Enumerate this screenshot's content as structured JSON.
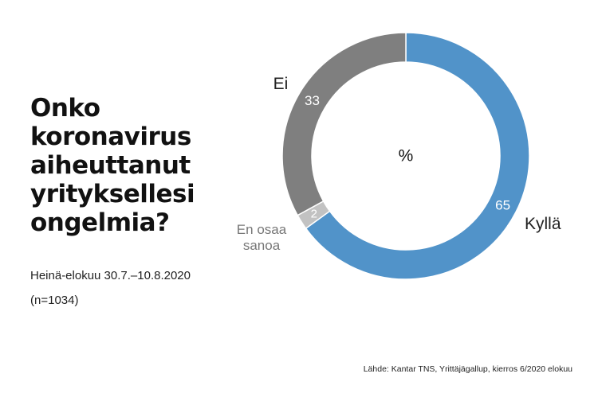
{
  "title_lines": [
    "Onko",
    "koronavirus",
    "aiheuttanut",
    "yrityksellesi",
    "ongelmia?"
  ],
  "subtitle": "Heinä-elokuu 30.7.–10.8.2020",
  "sample": "(n=1034)",
  "source": "Lähde: Kantar TNS, Yrittäjägallup, kierros 6/2020 elokuu",
  "chart_data": {
    "type": "pie",
    "variant": "donut",
    "center_label": "%",
    "slices": [
      {
        "label": "Kyllä",
        "value": 65,
        "color": "#5193c9"
      },
      {
        "label": "En osaa sanoa",
        "value": 2,
        "color": "#c2c2c2"
      },
      {
        "label": "Ei",
        "value": 33,
        "color": "#7f7f7f"
      }
    ]
  }
}
